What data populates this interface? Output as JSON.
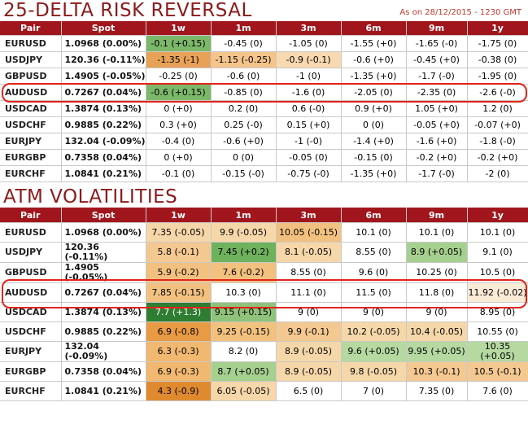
{
  "risk_reversal": {
    "title": "25-DELTA RISK REVERSAL",
    "as_of": "As on 28/12/2015 - 1230 GMT",
    "headers": [
      "Pair",
      "Spot",
      "1w",
      "1m",
      "3m",
      "6m",
      "9m",
      "1y"
    ],
    "rows": [
      {
        "pair": "EURUSD",
        "spot": "1.0968 (0.00%)",
        "cells": [
          "-0.1 (+0.15)",
          "-0.45 (0)",
          "-1.05 (0)",
          "-1.55 (+0)",
          "-1.65 (-0)",
          "-1.75 (0)"
        ],
        "colors": [
          "#7cb86a",
          "",
          "",
          "",
          "",
          ""
        ]
      },
      {
        "pair": "USDJPY",
        "spot": "120.36 (-0.11%)",
        "cells": [
          "-1.35 (-1)",
          "-1.15 (-0.25)",
          "-0.9 (-0.1)",
          "-0.6 (+0)",
          "-0.45 (+0)",
          "-0.38 (0)"
        ],
        "colors": [
          "#e8a257",
          "#f4c48b",
          "#f8d9b0",
          "",
          "",
          ""
        ]
      },
      {
        "pair": "GBPUSD",
        "spot": "1.4905 (-0.05%)",
        "cells": [
          "-0.25 (0)",
          "-0.6 (0)",
          "-1 (0)",
          "-1.35 (+0)",
          "-1.7 (-0)",
          "-1.95 (0)"
        ],
        "colors": [
          "",
          "",
          "",
          "",
          "",
          ""
        ]
      },
      {
        "pair": "AUDUSD",
        "spot": "0.7267 (0.04%)",
        "cells": [
          "-0.6 (+0.15)",
          "-0.85 (0)",
          "-1.6 (0)",
          "-2.05 (0)",
          "-2.35 (0)",
          "-2.6 (-0)"
        ],
        "colors": [
          "#7cb86a",
          "",
          "",
          "",
          "",
          ""
        ]
      },
      {
        "pair": "USDCAD",
        "spot": "1.3874 (0.13%)",
        "cells": [
          "0 (+0)",
          "0.2 (0)",
          "0.6 (-0)",
          "0.9 (+0)",
          "1.05 (+0)",
          "1.2 (0)"
        ],
        "colors": [
          "",
          "",
          "",
          "",
          "",
          ""
        ]
      },
      {
        "pair": "USDCHF",
        "spot": "0.9885 (0.22%)",
        "cells": [
          "0.3 (+0)",
          "0.25 (-0)",
          "0.15 (+0)",
          "0 (0)",
          "-0.05 (+0)",
          "-0.07 (+0)"
        ],
        "colors": [
          "",
          "",
          "",
          "",
          "",
          ""
        ]
      },
      {
        "pair": "EURJPY",
        "spot": "132.04 (-0.09%)",
        "cells": [
          "-0.4 (0)",
          "-0.6 (+0)",
          "-1 (-0)",
          "-1.4 (+0)",
          "-1.6 (+0)",
          "-1.8 (-0)"
        ],
        "colors": [
          "",
          "",
          "",
          "",
          "",
          ""
        ]
      },
      {
        "pair": "EURGBP",
        "spot": "0.7358 (0.04%)",
        "cells": [
          "0 (+0)",
          "0 (0)",
          "-0.05 (0)",
          "-0.15 (0)",
          "-0.2 (+0)",
          "-0.2 (+0)"
        ],
        "colors": [
          "",
          "",
          "",
          "",
          "",
          ""
        ]
      },
      {
        "pair": "EURCHF",
        "spot": "1.0841 (0.21%)",
        "cells": [
          "-0.1 (0)",
          "-0.15 (-0)",
          "-0.75 (-0)",
          "-1.35 (+0)",
          "-1.7 (-0)",
          "-2 (0)"
        ],
        "colors": [
          "",
          "",
          "",
          "",
          "",
          ""
        ]
      }
    ]
  },
  "atm_vol": {
    "title": "ATM VOLATILITIES",
    "headers": [
      "Pair",
      "Spot",
      "1w",
      "1m",
      "3m",
      "6m",
      "9m",
      "1y"
    ],
    "rows": [
      {
        "pair": "EURUSD",
        "spot": "1.0968 (0.00%)",
        "cells": [
          "7.35 (-0.05)",
          "9.9 (-0.05)",
          "10.05 (-0.15)",
          "10.1 (0)",
          "10.1 (0)",
          "10.1 (0)"
        ],
        "colors": [
          "#f6d7a9",
          "#f6d7a9",
          "#f2c17f",
          "",
          "",
          ""
        ]
      },
      {
        "pair": "USDJPY",
        "spot": "120.36 (-0.11%)",
        "cells": [
          "5.8 (-0.1)",
          "7.45 (+0.2)",
          "8.1 (-0.05)",
          "8.55 (0)",
          "8.9 (+0.05)",
          "9.1 (0)"
        ],
        "colors": [
          "#f4c891",
          "#6fb25e",
          "#f6d7a9",
          "",
          "#a6d08f",
          ""
        ]
      },
      {
        "pair": "GBPUSD",
        "spot": "1.4905 (-0.05%)",
        "cells": [
          "5.9 (-0.2)",
          "7.6 (-0.2)",
          "8.55 (0)",
          "9.6 (0)",
          "10.25 (0)",
          "10.5 (0)"
        ],
        "colors": [
          "#f2c17f",
          "#f2c17f",
          "",
          "",
          "",
          ""
        ]
      },
      {
        "pair": "AUDUSD",
        "spot": "0.7267 (0.04%)",
        "cells": [
          "7.85 (-0.15)",
          "10.3 (0)",
          "11.1 (0)",
          "11.5 (0)",
          "11.8 (0)",
          "11.92 (-0.02)"
        ],
        "colors": [
          "#f2c17f",
          "",
          "",
          "",
          "",
          "#faebd7"
        ]
      },
      {
        "pair": "USDCAD",
        "spot": "1.3874 (0.13%)",
        "cells": [
          "7.7 (+1.3)",
          "9.15 (+0.15)",
          "9 (0)",
          "9 (0)",
          "9 (0)",
          "8.95 (0)"
        ],
        "colors": [
          "#2f7d32",
          "#8fc27a",
          "",
          "",
          "",
          ""
        ]
      },
      {
        "pair": "USDCHF",
        "spot": "0.9885 (0.22%)",
        "cells": [
          "6.9 (-0.8)",
          "9.25 (-0.15)",
          "9.9 (-0.1)",
          "10.2 (-0.05)",
          "10.4 (-0.05)",
          "10.55 (0)"
        ],
        "colors": [
          "#e89a45",
          "#f2c17f",
          "#f4c891",
          "#f6d7a9",
          "#f6d7a9",
          ""
        ]
      },
      {
        "pair": "EURJPY",
        "spot": "132.04 (-0.09%)",
        "cells": [
          "6.3 (-0.3)",
          "8.2 (0)",
          "8.9 (-0.05)",
          "9.6 (+0.05)",
          "9.95 (+0.05)",
          "10.35 (+0.05)"
        ],
        "colors": [
          "#f0b870",
          "",
          "#f6d7a9",
          "#b5d9a0",
          "#b5d9a0",
          "#b5d9a0"
        ]
      },
      {
        "pair": "EURGBP",
        "spot": "0.7358 (0.04%)",
        "cells": [
          "6.9 (-0.3)",
          "8.7 (+0.05)",
          "8.9 (-0.05)",
          "9.8 (-0.05)",
          "10.3 (-0.1)",
          "10.5 (-0.1)"
        ],
        "colors": [
          "#f0b870",
          "#a6d08f",
          "#f6d7a9",
          "#f6d7a9",
          "#f4c891",
          "#f4c891"
        ]
      },
      {
        "pair": "EURCHF",
        "spot": "1.0841 (0.21%)",
        "cells": [
          "4.3 (-0.9)",
          "6.05 (-0.05)",
          "6.5 (0)",
          "7 (0)",
          "7.35 (0)",
          "7.6 (0)"
        ],
        "colors": [
          "#e08a30",
          "#f6d7a9",
          "",
          "",
          "",
          ""
        ]
      }
    ]
  }
}
